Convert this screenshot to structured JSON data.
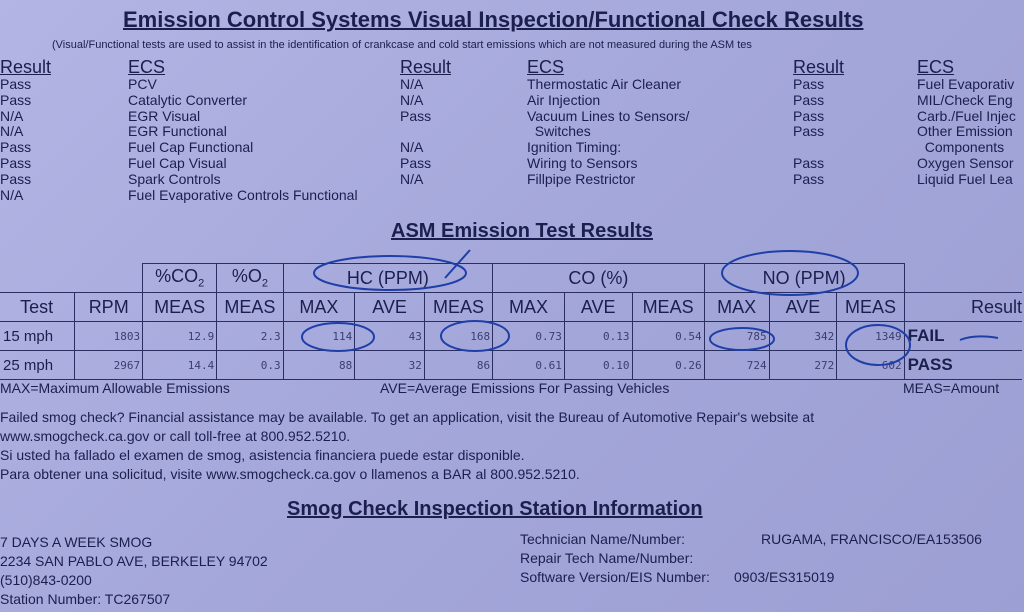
{
  "title": "Emission Control Systems Visual Inspection/Functional Check Results",
  "subtitle": "(Visual/Functional tests are used to assist in the identification of crankcase and cold start emissions which are not measured during the ASM tes",
  "ecs_columns": [
    {
      "result_header": "Result",
      "ecs_header": "ECS",
      "rows": [
        [
          "Pass",
          "PCV"
        ],
        [
          "Pass",
          "Catalytic Converter"
        ],
        [
          "N/A",
          "EGR Visual"
        ],
        [
          "N/A",
          "EGR Functional"
        ],
        [
          "Pass",
          "Fuel Cap Functional"
        ],
        [
          "Pass",
          "Fuel Cap Visual"
        ],
        [
          "Pass",
          "Spark Controls"
        ],
        [
          "N/A",
          "Fuel Evaporative Controls Functional"
        ]
      ]
    },
    {
      "result_header": "Result",
      "ecs_header": "ECS",
      "rows": [
        [
          "N/A",
          "Thermostatic Air Cleaner"
        ],
        [
          "N/A",
          "Air Injection"
        ],
        [
          "Pass",
          "Vacuum Lines to Sensors/"
        ],
        [
          "",
          "  Switches"
        ],
        [
          "N/A",
          "Ignition Timing:"
        ],
        [
          "Pass",
          "Wiring to Sensors"
        ],
        [
          "N/A",
          "Fillpipe Restrictor"
        ]
      ]
    },
    {
      "result_header": "Result",
      "ecs_header": "ECS",
      "rows": [
        [
          "Pass",
          "Fuel Evaporativ"
        ],
        [
          "Pass",
          "MIL/Check Eng"
        ],
        [
          "Pass",
          "Carb./Fuel Injec"
        ],
        [
          "Pass",
          "Other Emission"
        ],
        [
          "",
          "  Components"
        ],
        [
          "Pass",
          "Oxygen Sensor"
        ],
        [
          "Pass",
          "Liquid Fuel Lea"
        ]
      ]
    }
  ],
  "asm": {
    "title": "ASM Emission Test Results",
    "group_headers": [
      "%CO2",
      "%O2",
      "HC (PPM)",
      "CO (%)",
      "NO (PPM)"
    ],
    "headers": [
      "Test",
      "RPM",
      "MEAS",
      "MEAS",
      "MAX",
      "AVE",
      "MEAS",
      "MAX",
      "AVE",
      "MEAS",
      "MAX",
      "AVE",
      "MEAS",
      "Result"
    ],
    "rows": [
      [
        "15 mph",
        "1803",
        "12.9",
        "2.3",
        "114",
        "43",
        "168",
        "0.73",
        "0.13",
        "0.54",
        "785",
        "342",
        "1349",
        "FAIL"
      ],
      [
        "25 mph",
        "2967",
        "14.4",
        "0.3",
        "88",
        "32",
        "86",
        "0.61",
        "0.10",
        "0.26",
        "724",
        "272",
        "602",
        "PASS"
      ]
    ],
    "legend": [
      "MAX=Maximum Allowable Emissions",
      "AVE=Average Emissions For Passing Vehicles",
      "MEAS=Amount"
    ]
  },
  "assistance": [
    "Failed smog check? Financial assistance may be available.  To get an application, visit the Bureau of Automotive Repair's website at",
    "www.smogcheck.ca.gov or call toll-free at 800.952.5210.",
    "Si usted ha fallado el examen de smog, asistencia financiera puede estar disponible.",
    "Para obtener una solicitud, visite www.smogcheck.ca.gov o llamenos a BAR al 800.952.5210."
  ],
  "station": {
    "title": "Smog Check Inspection Station Information",
    "lines": [
      "7 DAYS A WEEK SMOG",
      "2234 SAN PABLO AVE, BERKELEY 94702",
      "(510)843-0200",
      "Station Number: TC267507"
    ],
    "tech_labels": [
      "Technician Name/Number:",
      "Repair Tech Name/Number:",
      "Software Version/EIS Number:"
    ],
    "technician": "RUGAMA, FRANCISCO/EA153506",
    "software": "0903/ES315019"
  },
  "colors": {
    "paper": "#a7a9dc",
    "ink": "#1b1f4d",
    "pen": "#1f3fa8"
  }
}
